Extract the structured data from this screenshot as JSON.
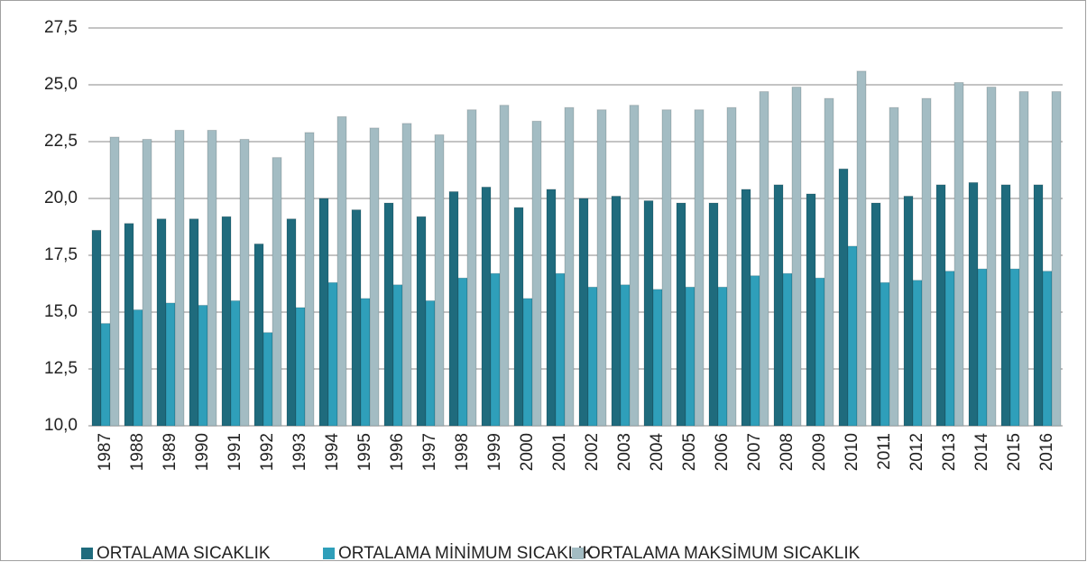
{
  "chart_data": {
    "type": "bar",
    "categories": [
      "1987",
      "1988",
      "1989",
      "1990",
      "1991",
      "1992",
      "1993",
      "1994",
      "1995",
      "1996",
      "1997",
      "1998",
      "1999",
      "2000",
      "2001",
      "2002",
      "2003",
      "2004",
      "2005",
      "2006",
      "2007",
      "2008",
      "2009",
      "2010",
      "2011",
      "2012",
      "2013",
      "2014",
      "2015",
      "2016"
    ],
    "series": [
      {
        "name": "ORTALAMA SICAKLIK",
        "color": "#1f6b7d",
        "values": [
          18.6,
          18.9,
          19.1,
          19.1,
          19.2,
          18.0,
          19.1,
          20.0,
          19.5,
          19.8,
          19.2,
          20.3,
          20.5,
          19.6,
          20.4,
          20.0,
          20.1,
          19.9,
          19.8,
          19.8,
          20.4,
          20.6,
          20.2,
          21.3,
          19.8,
          20.1,
          20.6,
          20.7,
          20.6,
          20.6
        ]
      },
      {
        "name": "ORTALAMA MİNİMUM SICAKLIK",
        "color": "#2f9fba",
        "values": [
          14.5,
          15.1,
          15.4,
          15.3,
          15.5,
          14.1,
          15.2,
          16.3,
          15.6,
          16.2,
          15.5,
          16.5,
          16.7,
          15.6,
          16.7,
          16.1,
          16.2,
          16.0,
          16.1,
          16.1,
          16.6,
          16.7,
          16.5,
          17.9,
          16.3,
          16.4,
          16.8,
          16.9,
          16.9,
          16.8
        ]
      },
      {
        "name": "ORTALAMA MAKSİMUM SICAKLIK",
        "color": "#a3bcc3",
        "values": [
          22.7,
          22.6,
          23.0,
          23.0,
          22.6,
          21.8,
          22.9,
          23.6,
          23.1,
          23.3,
          22.8,
          23.9,
          24.1,
          23.4,
          24.0,
          23.9,
          24.1,
          23.9,
          23.9,
          24.0,
          24.7,
          24.9,
          24.4,
          25.6,
          24.0,
          24.4,
          25.1,
          24.9,
          24.7,
          24.7
        ]
      }
    ],
    "ylim": [
      10,
      27.5
    ],
    "yticks": [
      {
        "value": 10,
        "label": "10,0"
      },
      {
        "value": 12.5,
        "label": "12,5"
      },
      {
        "value": 15,
        "label": "15,0"
      },
      {
        "value": 17.5,
        "label": "17,5"
      },
      {
        "value": 20,
        "label": "20,0"
      },
      {
        "value": 22.5,
        "label": "22,5"
      },
      {
        "value": 25,
        "label": "25,0"
      },
      {
        "value": 27.5,
        "label": "27,5"
      }
    ],
    "grid": true,
    "legend": "bottom"
  }
}
